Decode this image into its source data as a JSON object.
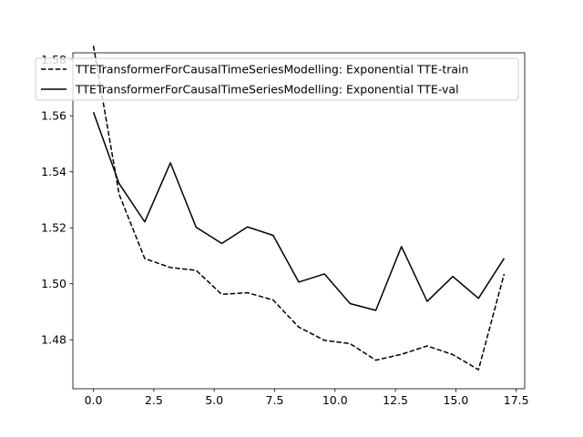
{
  "chart_data": {
    "type": "line",
    "title": "",
    "xlabel": "",
    "ylabel": "",
    "xlim": [
      -0.85,
      17.85
    ],
    "ylim": [
      1.4625,
      1.5825
    ],
    "x": [
      0,
      1.0625,
      2.125,
      3.1875,
      4.25,
      5.3125,
      6.375,
      7.4375,
      8.5,
      9.5625,
      10.625,
      11.6875,
      12.75,
      13.8125,
      14.875,
      15.9375,
      17
    ],
    "series": [
      {
        "name": "TTETransformerForCausalTimeSeriesModelling: Exponential TTE-train",
        "style": "dashed",
        "values": [
          1.585,
          1.532,
          1.509,
          1.5058,
          1.5048,
          1.4962,
          1.4968,
          1.4942,
          1.4845,
          1.4798,
          1.4786,
          1.4727,
          1.4748,
          1.4778,
          1.4747,
          1.4693,
          1.5035
        ]
      },
      {
        "name": "TTETransformerForCausalTimeSeriesModelling: Exponential TTE-val",
        "style": "solid",
        "values": [
          1.5613,
          1.5358,
          1.5221,
          1.5432,
          1.5202,
          1.5144,
          1.5203,
          1.5173,
          1.5006,
          1.5035,
          1.4929,
          1.4905,
          1.5133,
          1.4937,
          1.5026,
          1.4948,
          1.5091
        ]
      }
    ],
    "xticks": [
      "0.0",
      "2.5",
      "5.0",
      "7.5",
      "10.0",
      "12.5",
      "15.0",
      "17.5"
    ],
    "xtick_values": [
      0,
      2.5,
      5,
      7.5,
      10,
      12.5,
      15,
      17.5
    ],
    "yticks": [
      "1.48",
      "1.50",
      "1.52",
      "1.54",
      "1.56",
      "1.58"
    ],
    "ytick_values": [
      1.48,
      1.5,
      1.52,
      1.54,
      1.56,
      1.58
    ],
    "grid": false,
    "legend_position": "upper-left",
    "line_color": "#000000"
  }
}
